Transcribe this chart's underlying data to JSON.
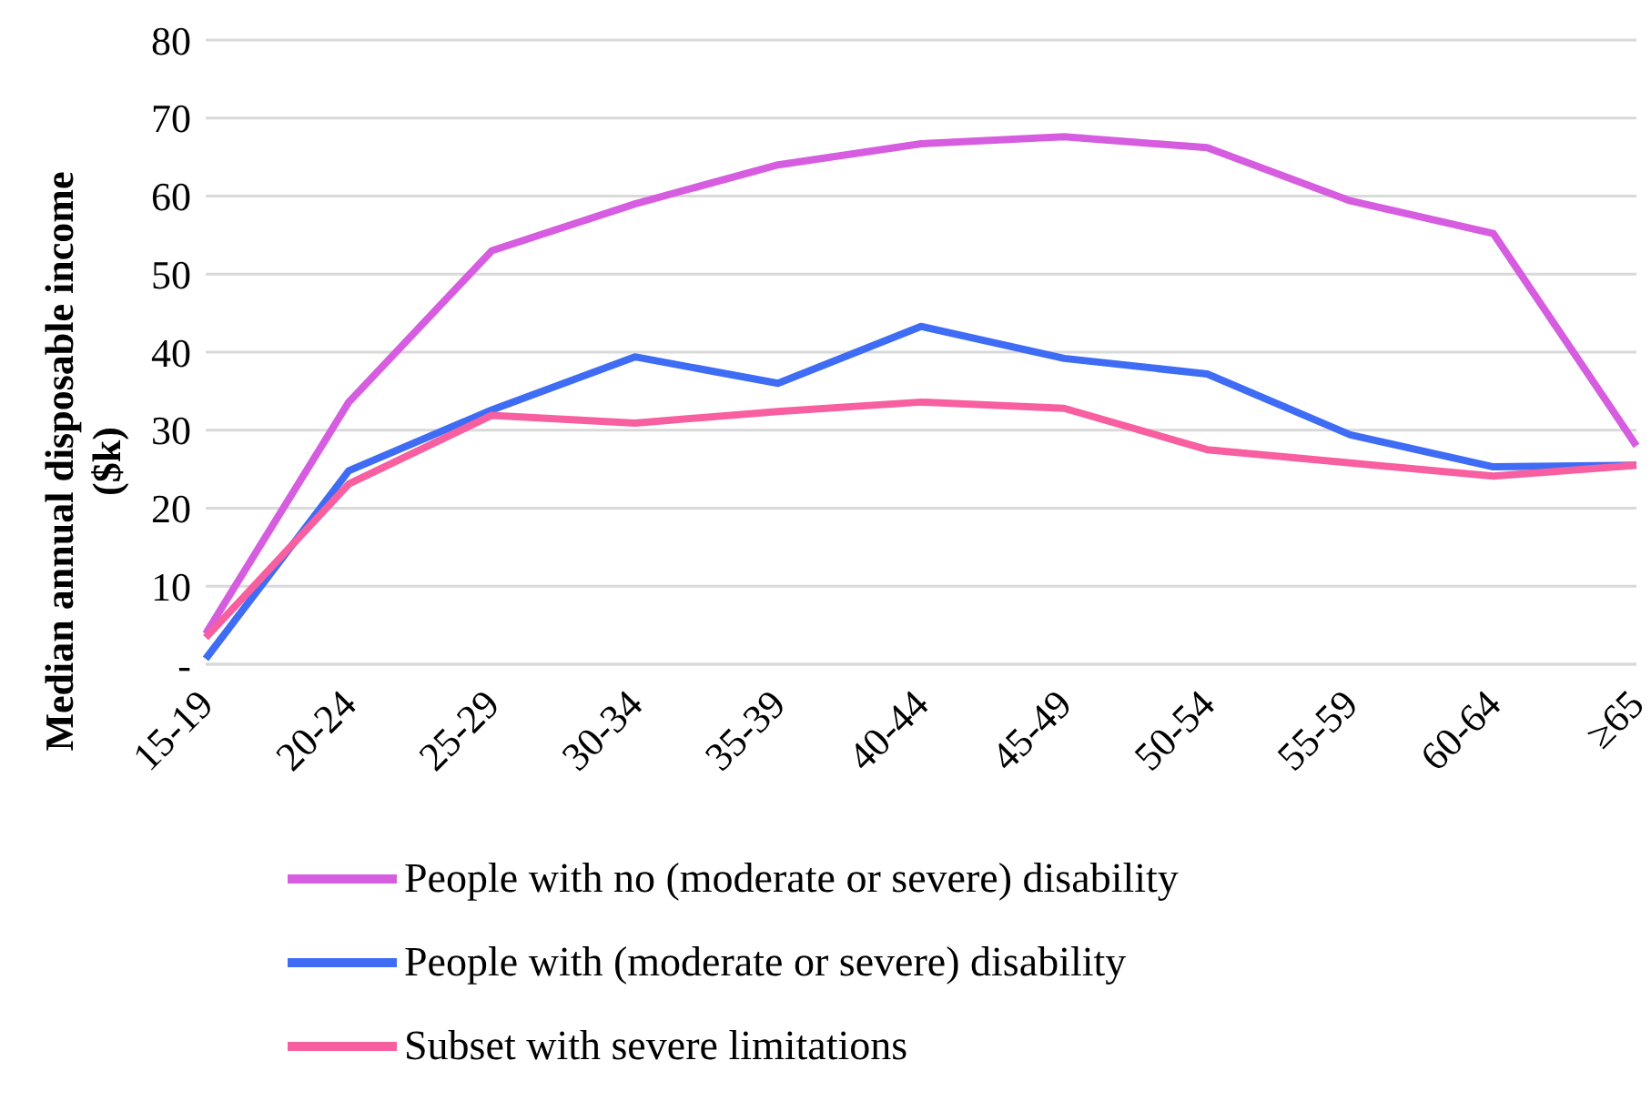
{
  "chart_data": {
    "type": "line",
    "ylabel": "Median annual disposable income ($k)",
    "categories": [
      "15-19",
      "20-24",
      "25-29",
      "30-34",
      "35-39",
      "40-44",
      "45-49",
      "50-54",
      "55-59",
      "60-64",
      "≥65"
    ],
    "series": [
      {
        "name": "People with no (moderate or severe) disability",
        "color": "#d65ce0",
        "values": [
          3.9,
          33.6,
          53,
          59,
          64,
          66.7,
          67.6,
          66.2,
          59.4,
          55.2,
          28
        ]
      },
      {
        "name": "People with (moderate or severe) disability",
        "color": "#3f6cf5",
        "values": [
          0.7,
          24.8,
          32.6,
          39.4,
          36,
          43.3,
          39.2,
          37.2,
          29.4,
          25.3,
          25.5
        ]
      },
      {
        "name": "Subset with severe limitations",
        "color": "#f75fa0",
        "values": [
          3.4,
          23.1,
          31.9,
          30.9,
          32.4,
          33.6,
          32.8,
          27.5,
          25.8,
          24.1,
          25.5
        ]
      }
    ],
    "ylim": [
      0,
      80
    ],
    "yticks": [
      {
        "value": 0,
        "label": "-"
      },
      10,
      20,
      30,
      40,
      50,
      60,
      70,
      80
    ],
    "grid": "y",
    "legend": "bottom",
    "marker": "none",
    "line_style": "solid"
  }
}
